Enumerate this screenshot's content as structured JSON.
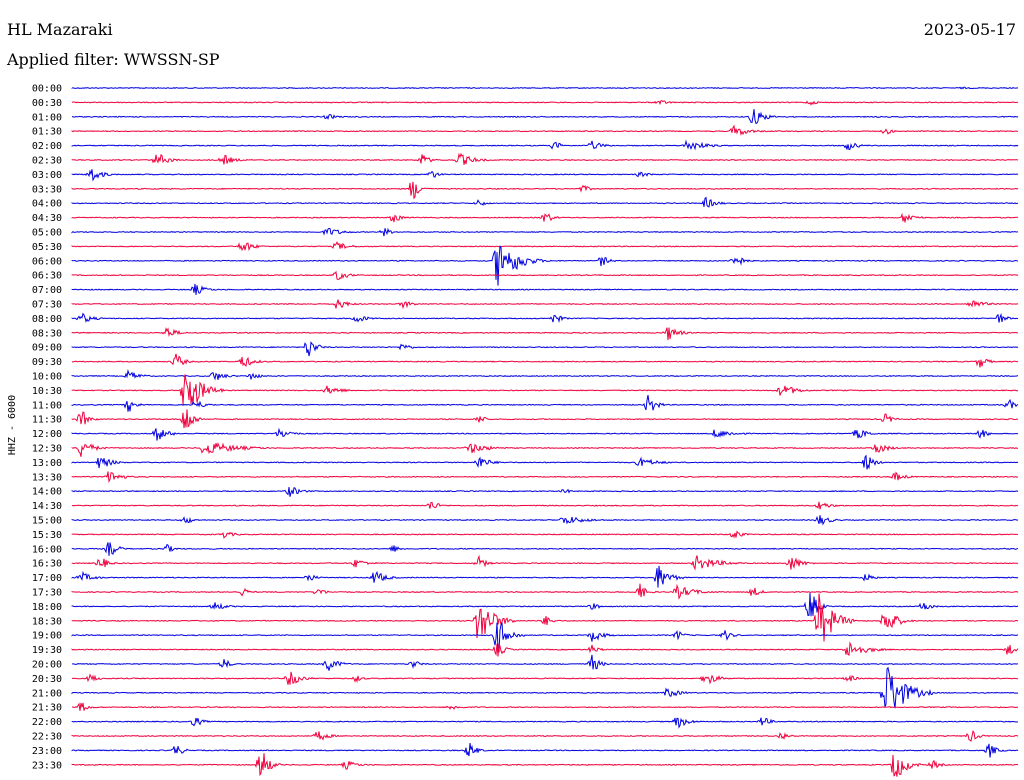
{
  "header": {
    "station": "HL Mazaraki",
    "date": "2023-05-17",
    "filter": "Applied filter: WWSSN-SP"
  },
  "chart_data": {
    "type": "line",
    "title": "",
    "xlabel": "",
    "ylabel": "HHZ - 6000",
    "colors": [
      "#0000e0",
      "#f0003c"
    ],
    "rows": [
      "00:00",
      "00:30",
      "01:00",
      "01:30",
      "02:00",
      "02:30",
      "03:00",
      "03:30",
      "04:00",
      "04:30",
      "05:00",
      "05:30",
      "06:00",
      "06:30",
      "07:00",
      "07:30",
      "08:00",
      "08:30",
      "09:00",
      "09:30",
      "10:00",
      "10:30",
      "11:00",
      "11:30",
      "12:00",
      "12:30",
      "13:00",
      "13:30",
      "14:00",
      "14:30",
      "15:00",
      "15:30",
      "16:00",
      "16:30",
      "17:00",
      "17:30",
      "18:00",
      "18:30",
      "19:00",
      "19:30",
      "20:00",
      "20:30",
      "21:00",
      "21:30",
      "22:00",
      "22:30",
      "23:00",
      "23:30"
    ],
    "events": [
      {
        "row": 0,
        "x": 0.94,
        "amp": 1,
        "w": 0.06
      },
      {
        "row": 1,
        "x": 0.62,
        "amp": 3,
        "w": 0.03
      },
      {
        "row": 1,
        "x": 0.78,
        "amp": 3,
        "w": 0.02
      },
      {
        "row": 2,
        "x": 0.27,
        "amp": 3,
        "w": 0.03
      },
      {
        "row": 2,
        "x": 0.72,
        "amp": 10,
        "w": 0.03
      },
      {
        "row": 3,
        "x": 0.7,
        "amp": 6,
        "w": 0.04
      },
      {
        "row": 3,
        "x": 0.86,
        "amp": 4,
        "w": 0.02
      },
      {
        "row": 4,
        "x": 0.51,
        "amp": 5,
        "w": 0.02
      },
      {
        "row": 4,
        "x": 0.55,
        "amp": 5,
        "w": 0.03
      },
      {
        "row": 4,
        "x": 0.65,
        "amp": 6,
        "w": 0.05
      },
      {
        "row": 4,
        "x": 0.82,
        "amp": 5,
        "w": 0.03
      },
      {
        "row": 5,
        "x": 0.09,
        "amp": 8,
        "w": 0.03
      },
      {
        "row": 5,
        "x": 0.16,
        "amp": 6,
        "w": 0.03
      },
      {
        "row": 5,
        "x": 0.37,
        "amp": 7,
        "w": 0.02
      },
      {
        "row": 5,
        "x": 0.41,
        "amp": 7,
        "w": 0.04
      },
      {
        "row": 6,
        "x": 0.02,
        "amp": 8,
        "w": 0.03
      },
      {
        "row": 6,
        "x": 0.38,
        "amp": 5,
        "w": 0.02
      },
      {
        "row": 6,
        "x": 0.6,
        "amp": 3,
        "w": 0.03
      },
      {
        "row": 7,
        "x": 0.36,
        "amp": 13,
        "w": 0.02
      },
      {
        "row": 7,
        "x": 0.54,
        "amp": 4,
        "w": 0.02
      },
      {
        "row": 8,
        "x": 0.43,
        "amp": 4,
        "w": 0.02
      },
      {
        "row": 8,
        "x": 0.67,
        "amp": 6,
        "w": 0.03
      },
      {
        "row": 9,
        "x": 0.34,
        "amp": 6,
        "w": 0.02
      },
      {
        "row": 9,
        "x": 0.5,
        "amp": 7,
        "w": 0.02
      },
      {
        "row": 9,
        "x": 0.88,
        "amp": 6,
        "w": 0.03
      },
      {
        "row": 10,
        "x": 0.27,
        "amp": 5,
        "w": 0.04
      },
      {
        "row": 10,
        "x": 0.33,
        "amp": 5,
        "w": 0.02
      },
      {
        "row": 11,
        "x": 0.18,
        "amp": 7,
        "w": 0.03
      },
      {
        "row": 11,
        "x": 0.28,
        "amp": 5,
        "w": 0.03
      },
      {
        "row": 12,
        "x": 0.45,
        "amp": 28,
        "w": 0.04
      },
      {
        "row": 12,
        "x": 0.47,
        "amp": 10,
        "w": 0.04
      },
      {
        "row": 12,
        "x": 0.56,
        "amp": 6,
        "w": 0.02
      },
      {
        "row": 12,
        "x": 0.7,
        "amp": 10,
        "w": 0.02
      },
      {
        "row": 13,
        "x": 0.28,
        "amp": 6,
        "w": 0.03
      },
      {
        "row": 14,
        "x": 0.13,
        "amp": 6,
        "w": 0.03
      },
      {
        "row": 15,
        "x": 0.28,
        "amp": 6,
        "w": 0.03
      },
      {
        "row": 15,
        "x": 0.35,
        "amp": 4,
        "w": 0.03
      },
      {
        "row": 15,
        "x": 0.95,
        "amp": 5,
        "w": 0.04
      },
      {
        "row": 16,
        "x": 0.01,
        "amp": 6,
        "w": 0.03
      },
      {
        "row": 16,
        "x": 0.3,
        "amp": 5,
        "w": 0.03
      },
      {
        "row": 16,
        "x": 0.51,
        "amp": 6,
        "w": 0.02
      },
      {
        "row": 16,
        "x": 0.98,
        "amp": 6,
        "w": 0.02
      },
      {
        "row": 17,
        "x": 0.1,
        "amp": 6,
        "w": 0.03
      },
      {
        "row": 17,
        "x": 0.63,
        "amp": 8,
        "w": 0.03
      },
      {
        "row": 18,
        "x": 0.25,
        "amp": 12,
        "w": 0.02
      },
      {
        "row": 18,
        "x": 0.35,
        "amp": 5,
        "w": 0.02
      },
      {
        "row": 19,
        "x": 0.11,
        "amp": 9,
        "w": 0.02
      },
      {
        "row": 19,
        "x": 0.18,
        "amp": 7,
        "w": 0.03
      },
      {
        "row": 19,
        "x": 0.96,
        "amp": 7,
        "w": 0.02
      },
      {
        "row": 20,
        "x": 0.06,
        "amp": 6,
        "w": 0.03
      },
      {
        "row": 20,
        "x": 0.15,
        "amp": 6,
        "w": 0.03
      },
      {
        "row": 20,
        "x": 0.19,
        "amp": 5,
        "w": 0.02
      },
      {
        "row": 21,
        "x": 0.12,
        "amp": 30,
        "w": 0.04
      },
      {
        "row": 21,
        "x": 0.27,
        "amp": 5,
        "w": 0.04
      },
      {
        "row": 21,
        "x": 0.75,
        "amp": 7,
        "w": 0.04
      },
      {
        "row": 22,
        "x": 0.06,
        "amp": 8,
        "w": 0.02
      },
      {
        "row": 22,
        "x": 0.13,
        "amp": 5,
        "w": 0.03
      },
      {
        "row": 22,
        "x": 0.61,
        "amp": 12,
        "w": 0.02
      },
      {
        "row": 22,
        "x": 0.99,
        "amp": 6,
        "w": 0.02
      },
      {
        "row": 23,
        "x": 0.01,
        "amp": 10,
        "w": 0.02
      },
      {
        "row": 23,
        "x": 0.12,
        "amp": 18,
        "w": 0.02
      },
      {
        "row": 23,
        "x": 0.43,
        "amp": 5,
        "w": 0.02
      },
      {
        "row": 23,
        "x": 0.86,
        "amp": 6,
        "w": 0.02
      },
      {
        "row": 24,
        "x": 0.09,
        "amp": 8,
        "w": 0.03
      },
      {
        "row": 24,
        "x": 0.22,
        "amp": 6,
        "w": 0.03
      },
      {
        "row": 24,
        "x": 0.68,
        "amp": 5,
        "w": 0.05
      },
      {
        "row": 24,
        "x": 0.83,
        "amp": 6,
        "w": 0.03
      },
      {
        "row": 24,
        "x": 0.96,
        "amp": 6,
        "w": 0.02
      },
      {
        "row": 25,
        "x": 0.01,
        "amp": 10,
        "w": 0.03
      },
      {
        "row": 25,
        "x": 0.14,
        "amp": 8,
        "w": 0.08
      },
      {
        "row": 25,
        "x": 0.42,
        "amp": 6,
        "w": 0.05
      },
      {
        "row": 25,
        "x": 0.85,
        "amp": 7,
        "w": 0.03
      },
      {
        "row": 26,
        "x": 0.03,
        "amp": 8,
        "w": 0.03
      },
      {
        "row": 26,
        "x": 0.43,
        "amp": 7,
        "w": 0.03
      },
      {
        "row": 26,
        "x": 0.6,
        "amp": 5,
        "w": 0.05
      },
      {
        "row": 26,
        "x": 0.84,
        "amp": 10,
        "w": 0.02
      },
      {
        "row": 27,
        "x": 0.04,
        "amp": 8,
        "w": 0.03
      },
      {
        "row": 27,
        "x": 0.87,
        "amp": 5,
        "w": 0.03
      },
      {
        "row": 28,
        "x": 0.23,
        "amp": 6,
        "w": 0.03
      },
      {
        "row": 28,
        "x": 0.52,
        "amp": 3,
        "w": 0.02
      },
      {
        "row": 29,
        "x": 0.38,
        "amp": 6,
        "w": 0.02
      },
      {
        "row": 29,
        "x": 0.79,
        "amp": 5,
        "w": 0.03
      },
      {
        "row": 30,
        "x": 0.12,
        "amp": 5,
        "w": 0.02
      },
      {
        "row": 30,
        "x": 0.52,
        "amp": 5,
        "w": 0.06
      },
      {
        "row": 30,
        "x": 0.79,
        "amp": 6,
        "w": 0.03
      },
      {
        "row": 31,
        "x": 0.16,
        "amp": 4,
        "w": 0.03
      },
      {
        "row": 31,
        "x": 0.7,
        "amp": 6,
        "w": 0.02
      },
      {
        "row": 32,
        "x": 0.04,
        "amp": 10,
        "w": 0.02
      },
      {
        "row": 32,
        "x": 0.1,
        "amp": 5,
        "w": 0.02
      },
      {
        "row": 32,
        "x": 0.34,
        "amp": 4,
        "w": 0.02
      },
      {
        "row": 33,
        "x": 0.03,
        "amp": 8,
        "w": 0.02
      },
      {
        "row": 33,
        "x": 0.3,
        "amp": 5,
        "w": 0.03
      },
      {
        "row": 33,
        "x": 0.43,
        "amp": 7,
        "w": 0.02
      },
      {
        "row": 33,
        "x": 0.66,
        "amp": 8,
        "w": 0.06
      },
      {
        "row": 33,
        "x": 0.76,
        "amp": 8,
        "w": 0.03
      },
      {
        "row": 34,
        "x": 0.01,
        "amp": 6,
        "w": 0.03
      },
      {
        "row": 34,
        "x": 0.25,
        "amp": 5,
        "w": 0.02
      },
      {
        "row": 34,
        "x": 0.32,
        "amp": 8,
        "w": 0.03
      },
      {
        "row": 34,
        "x": 0.62,
        "amp": 14,
        "w": 0.03
      },
      {
        "row": 34,
        "x": 0.84,
        "amp": 5,
        "w": 0.02
      },
      {
        "row": 35,
        "x": 0.18,
        "amp": 5,
        "w": 0.02
      },
      {
        "row": 35,
        "x": 0.26,
        "amp": 5,
        "w": 0.02
      },
      {
        "row": 35,
        "x": 0.6,
        "amp": 9,
        "w": 0.02
      },
      {
        "row": 35,
        "x": 0.64,
        "amp": 7,
        "w": 0.05
      },
      {
        "row": 35,
        "x": 0.72,
        "amp": 6,
        "w": 0.02
      },
      {
        "row": 36,
        "x": 0.15,
        "amp": 5,
        "w": 0.03
      },
      {
        "row": 36,
        "x": 0.55,
        "amp": 4,
        "w": 0.02
      },
      {
        "row": 36,
        "x": 0.78,
        "amp": 20,
        "w": 0.02
      },
      {
        "row": 36,
        "x": 0.9,
        "amp": 6,
        "w": 0.02
      },
      {
        "row": 37,
        "x": 0.43,
        "amp": 26,
        "w": 0.04
      },
      {
        "row": 37,
        "x": 0.5,
        "amp": 6,
        "w": 0.02
      },
      {
        "row": 37,
        "x": 0.79,
        "amp": 30,
        "w": 0.04
      },
      {
        "row": 37,
        "x": 0.86,
        "amp": 16,
        "w": 0.03
      },
      {
        "row": 38,
        "x": 0.45,
        "amp": 20,
        "w": 0.03
      },
      {
        "row": 38,
        "x": 0.55,
        "amp": 7,
        "w": 0.03
      },
      {
        "row": 38,
        "x": 0.64,
        "amp": 5,
        "w": 0.02
      },
      {
        "row": 38,
        "x": 0.69,
        "amp": 6,
        "w": 0.02
      },
      {
        "row": 39,
        "x": 0.45,
        "amp": 8,
        "w": 0.02
      },
      {
        "row": 39,
        "x": 0.55,
        "amp": 5,
        "w": 0.02
      },
      {
        "row": 39,
        "x": 0.82,
        "amp": 9,
        "w": 0.05
      },
      {
        "row": 39,
        "x": 0.99,
        "amp": 8,
        "w": 0.02
      },
      {
        "row": 40,
        "x": 0.16,
        "amp": 6,
        "w": 0.02
      },
      {
        "row": 40,
        "x": 0.27,
        "amp": 8,
        "w": 0.03
      },
      {
        "row": 40,
        "x": 0.36,
        "amp": 5,
        "w": 0.02
      },
      {
        "row": 40,
        "x": 0.55,
        "amp": 10,
        "w": 0.02
      },
      {
        "row": 41,
        "x": 0.02,
        "amp": 5,
        "w": 0.02
      },
      {
        "row": 41,
        "x": 0.23,
        "amp": 9,
        "w": 0.03
      },
      {
        "row": 41,
        "x": 0.3,
        "amp": 4,
        "w": 0.02
      },
      {
        "row": 41,
        "x": 0.67,
        "amp": 8,
        "w": 0.03
      },
      {
        "row": 41,
        "x": 0.82,
        "amp": 5,
        "w": 0.02
      },
      {
        "row": 42,
        "x": 0.86,
        "amp": 34,
        "w": 0.05
      },
      {
        "row": 42,
        "x": 0.63,
        "amp": 6,
        "w": 0.03
      },
      {
        "row": 43,
        "x": 0.01,
        "amp": 6,
        "w": 0.02
      },
      {
        "row": 43,
        "x": 0.4,
        "amp": 3,
        "w": 0.03
      },
      {
        "row": 44,
        "x": 0.13,
        "amp": 6,
        "w": 0.02
      },
      {
        "row": 44,
        "x": 0.64,
        "amp": 7,
        "w": 0.03
      },
      {
        "row": 44,
        "x": 0.73,
        "amp": 6,
        "w": 0.02
      },
      {
        "row": 45,
        "x": 0.26,
        "amp": 6,
        "w": 0.03
      },
      {
        "row": 45,
        "x": 0.75,
        "amp": 5,
        "w": 0.02
      },
      {
        "row": 45,
        "x": 0.95,
        "amp": 7,
        "w": 0.02
      },
      {
        "row": 46,
        "x": 0.11,
        "amp": 7,
        "w": 0.02
      },
      {
        "row": 46,
        "x": 0.42,
        "amp": 9,
        "w": 0.02
      },
      {
        "row": 46,
        "x": 0.97,
        "amp": 8,
        "w": 0.02
      },
      {
        "row": 47,
        "x": 0.2,
        "amp": 20,
        "w": 0.02
      },
      {
        "row": 47,
        "x": 0.29,
        "amp": 5,
        "w": 0.03
      },
      {
        "row": 47,
        "x": 0.87,
        "amp": 18,
        "w": 0.03
      },
      {
        "row": 47,
        "x": 0.91,
        "amp": 5,
        "w": 0.02
      }
    ]
  }
}
